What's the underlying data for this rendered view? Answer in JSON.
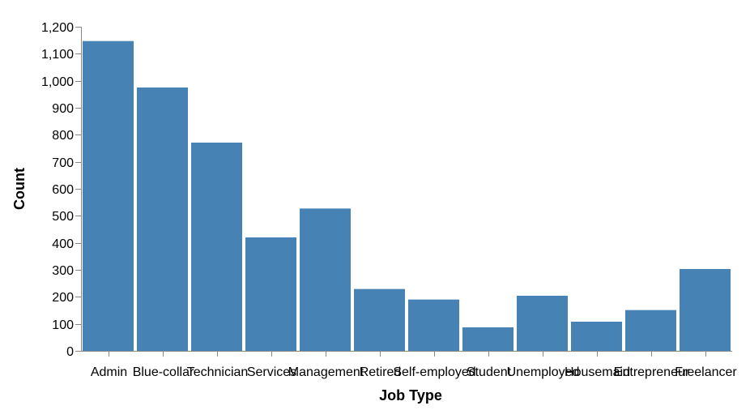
{
  "chart_data": {
    "type": "bar",
    "title": "",
    "xlabel": "Job Type",
    "ylabel": "Count",
    "categories": [
      "Admin",
      "Blue-collar",
      "Technician",
      "Services",
      "Management",
      "Retired",
      "Self-employed",
      "Student",
      "Unemployed",
      "Housemaid",
      "Entrepreneur",
      "Freelancer"
    ],
    "values": [
      1147,
      975,
      771,
      420,
      527,
      229,
      190,
      87,
      204,
      108,
      151,
      303
    ],
    "ylim": [
      0,
      1200
    ],
    "yticks": [
      0,
      100,
      200,
      300,
      400,
      500,
      600,
      700,
      800,
      900,
      1000,
      1100,
      1200
    ],
    "ytick_labels": [
      "0",
      "100",
      "200",
      "300",
      "400",
      "500",
      "600",
      "700",
      "800",
      "900",
      "1,000",
      "1,100",
      "1,200"
    ],
    "grid": false,
    "legend": "none",
    "bar_color": "#4682b4",
    "axis_color": "#888888"
  }
}
